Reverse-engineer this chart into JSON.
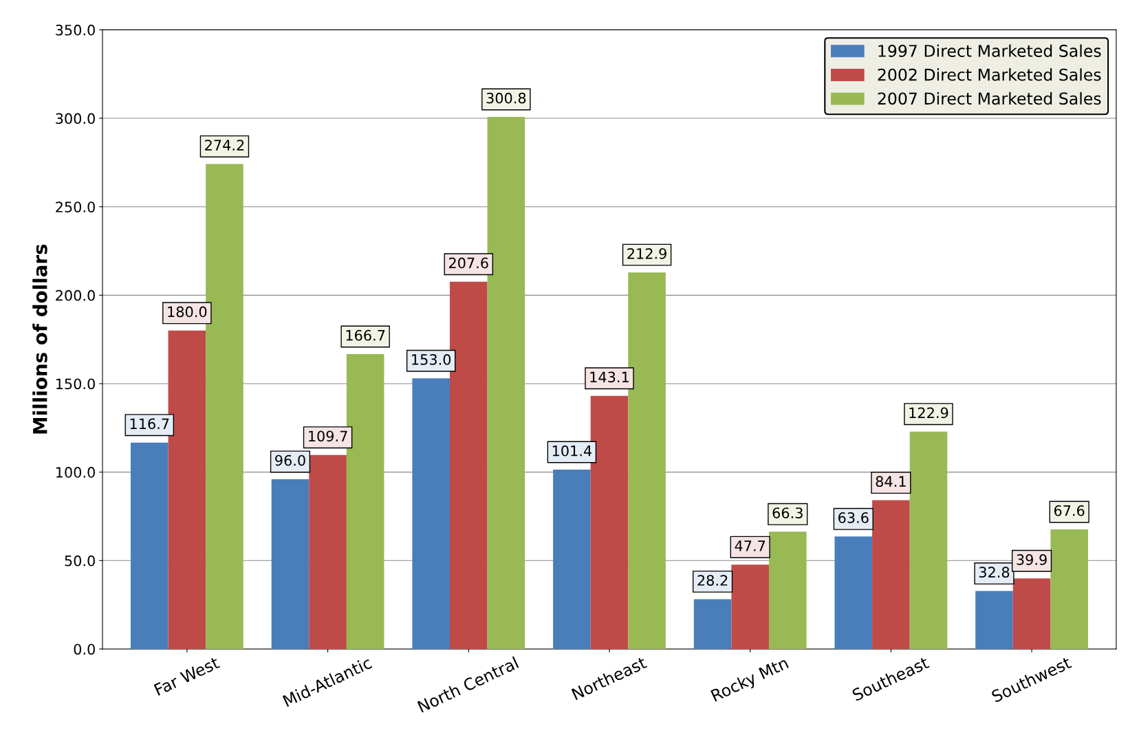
{
  "chart_data": {
    "type": "bar",
    "ylabel": "Millions of dollars",
    "categories": [
      "Far West",
      "Mid-Atlantic",
      "North Central",
      "Northeast",
      "Rocky Mtn",
      "Southeast",
      "Southwest"
    ],
    "series": [
      {
        "name": "1997 Direct Marketed Sales",
        "color": "#4a7ebb",
        "values": [
          116.7,
          96.0,
          153.0,
          101.4,
          28.2,
          63.6,
          32.8
        ],
        "value_labels": [
          "116.7",
          "96.0",
          "153.0",
          "101.4",
          "28.2",
          "63.6",
          "32.8"
        ]
      },
      {
        "name": "2002 Direct Marketed Sales",
        "color": "#be4b48",
        "values": [
          180.0,
          109.7,
          207.6,
          143.1,
          47.7,
          84.1,
          39.9
        ],
        "value_labels": [
          "180.0",
          "109.7",
          "207.6",
          "143.1",
          "47.7",
          "84.1",
          "39.9"
        ]
      },
      {
        "name": "2007 Direct Marketed Sales",
        "color": "#98b954",
        "values": [
          274.2,
          166.7,
          300.8,
          212.9,
          66.3,
          122.9,
          67.6
        ],
        "value_labels": [
          "274.2",
          "166.7",
          "300.8",
          "212.9",
          "66.3",
          "122.9",
          "67.6"
        ]
      }
    ],
    "ylim": [
      0,
      350
    ],
    "yticks": [
      {
        "value": 0,
        "label": "0.0"
      },
      {
        "value": 50,
        "label": "50.0"
      },
      {
        "value": 100,
        "label": "100.0"
      },
      {
        "value": 150,
        "label": "150.0"
      },
      {
        "value": 200,
        "label": "200.0"
      },
      {
        "value": 250,
        "label": "250.0"
      },
      {
        "value": 300,
        "label": "300.0"
      },
      {
        "value": 350,
        "label": "350.0"
      }
    ],
    "grid": "y",
    "legend": "top right"
  }
}
